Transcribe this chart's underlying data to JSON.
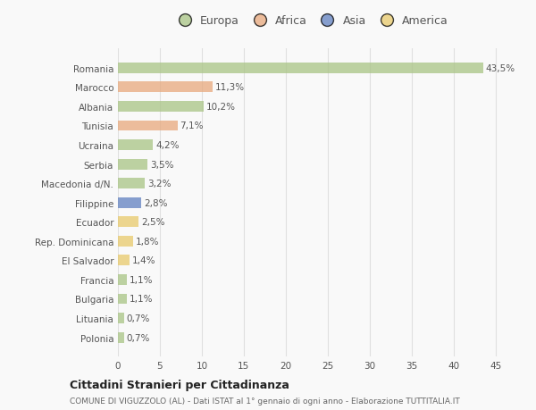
{
  "countries": [
    "Romania",
    "Marocco",
    "Albania",
    "Tunisia",
    "Ucraina",
    "Serbia",
    "Macedonia d/N.",
    "Filippine",
    "Ecuador",
    "Rep. Dominicana",
    "El Salvador",
    "Francia",
    "Bulgaria",
    "Lituania",
    "Polonia"
  ],
  "values": [
    43.5,
    11.3,
    10.2,
    7.1,
    4.2,
    3.5,
    3.2,
    2.8,
    2.5,
    1.8,
    1.4,
    1.1,
    1.1,
    0.7,
    0.7
  ],
  "labels": [
    "43,5%",
    "11,3%",
    "10,2%",
    "7,1%",
    "4,2%",
    "3,5%",
    "3,2%",
    "2,8%",
    "2,5%",
    "1,8%",
    "1,4%",
    "1,1%",
    "1,1%",
    "0,7%",
    "0,7%"
  ],
  "continents": [
    "Europa",
    "Africa",
    "Europa",
    "Africa",
    "Europa",
    "Europa",
    "Europa",
    "Asia",
    "America",
    "America",
    "America",
    "Europa",
    "Europa",
    "Europa",
    "Europa"
  ],
  "continent_colors": {
    "Europa": "#a8c484",
    "Africa": "#e8a87c",
    "Asia": "#6080c0",
    "America": "#e8c96a"
  },
  "legend_entries": [
    "Europa",
    "Africa",
    "Asia",
    "America"
  ],
  "legend_colors": [
    "#a8c484",
    "#e8a87c",
    "#6080c0",
    "#e8c96a"
  ],
  "title": "Cittadini Stranieri per Cittadinanza",
  "subtitle": "COMUNE DI VIGUZZOLO (AL) - Dati ISTAT al 1° gennaio di ogni anno - Elaborazione TUTTITALIA.IT",
  "xlim": [
    0,
    46
  ],
  "xticks": [
    0,
    5,
    10,
    15,
    20,
    25,
    30,
    35,
    40,
    45
  ],
  "background_color": "#f9f9f9",
  "bar_alpha": 0.75,
  "grid_color": "#e0e0e0"
}
